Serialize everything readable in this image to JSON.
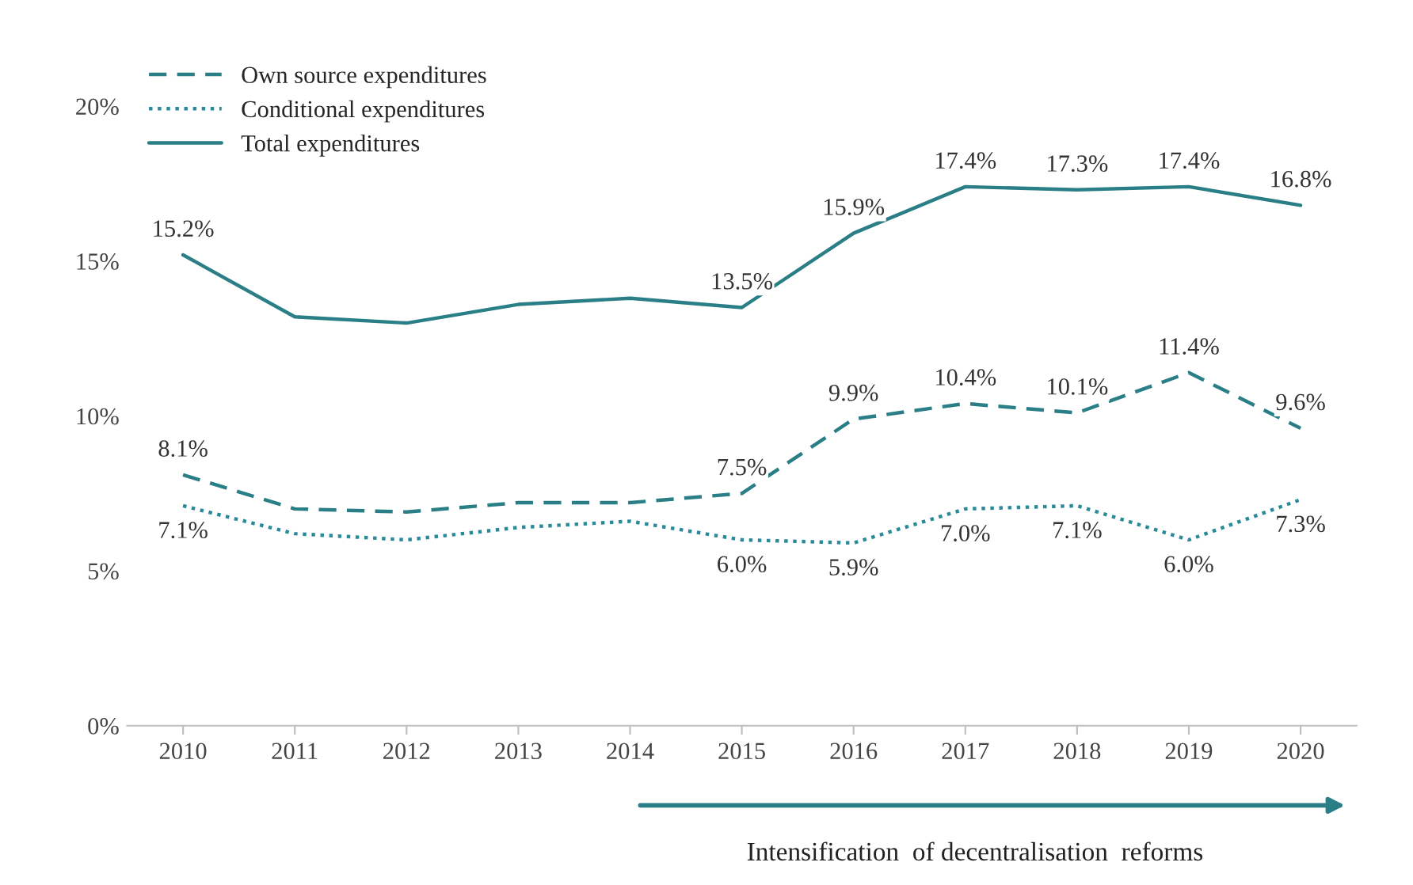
{
  "chart_data": {
    "type": "line",
    "categories": [
      "2010",
      "2011",
      "2012",
      "2013",
      "2014",
      "2015",
      "2016",
      "2017",
      "2018",
      "2019",
      "2020"
    ],
    "series": [
      {
        "name": "Own source expenditures",
        "color": "#2a7f86",
        "line_style": "dashed",
        "values": [
          8.1,
          7.0,
          6.9,
          7.2,
          7.2,
          7.5,
          9.9,
          10.4,
          10.1,
          11.4,
          9.6
        ],
        "value_labels": [
          "8.1%",
          null,
          null,
          null,
          null,
          "7.5%",
          "9.9%",
          "10.4%",
          "10.1%",
          "11.4%",
          "9.6%"
        ]
      },
      {
        "name": "Conditional expenditures",
        "color": "#2a8a99",
        "line_style": "dotted",
        "values": [
          7.1,
          6.2,
          6.0,
          6.4,
          6.6,
          6.0,
          5.9,
          7.0,
          7.1,
          6.0,
          7.3
        ],
        "value_labels": [
          "7.1%",
          null,
          null,
          null,
          null,
          "6.0%",
          "5.9%",
          "7.0%",
          "7.1%",
          "6.0%",
          "7.3%"
        ]
      },
      {
        "name": "Total expenditures",
        "color": "#2a7f86",
        "line_style": "solid",
        "values": [
          15.2,
          13.2,
          13.0,
          13.6,
          13.8,
          13.5,
          15.9,
          17.4,
          17.3,
          17.4,
          16.8
        ],
        "value_labels": [
          "15.2%",
          null,
          null,
          null,
          null,
          "13.5%",
          "15.9%",
          "17.4%",
          "17.3%",
          "17.4%",
          "16.8%"
        ]
      }
    ],
    "ylim": [
      0,
      20
    ],
    "yticks": [
      {
        "value": 0,
        "label": "0%"
      },
      {
        "value": 5,
        "label": "5%"
      },
      {
        "value": 10,
        "label": "10%"
      },
      {
        "value": 15,
        "label": "15%"
      },
      {
        "value": 20,
        "label": "20%"
      }
    ],
    "grid": false,
    "legend": "top left",
    "marker": "none",
    "annotations": [
      "Intensification  of decentralisation  reforms"
    ]
  }
}
